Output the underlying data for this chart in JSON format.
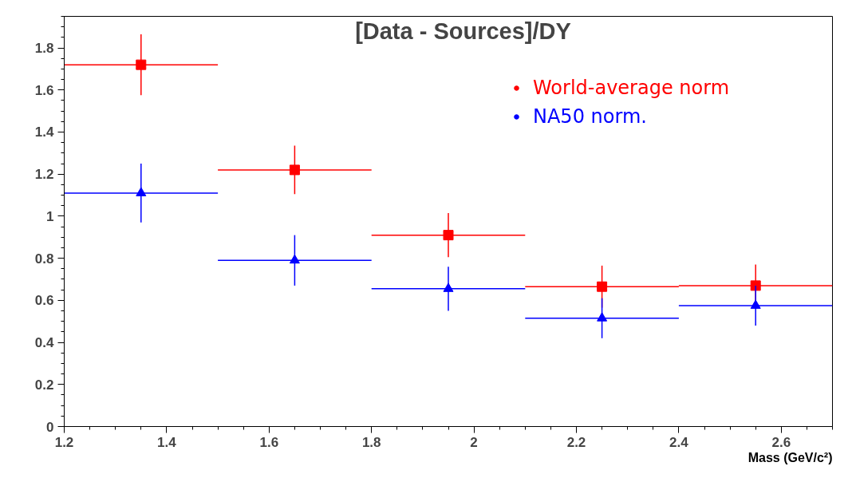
{
  "chart_data": {
    "type": "scatter",
    "title": "[Data - Sources]/DY",
    "xlabel": "Mass (GeV/c²)",
    "x": [
      1.35,
      1.65,
      1.95,
      2.25,
      2.55
    ],
    "series": [
      {
        "name": "World-average norm",
        "color": "#ff0000",
        "marker": "square",
        "values": [
          1.72,
          1.22,
          0.91,
          0.665,
          0.67
        ],
        "errors": [
          0.145,
          0.115,
          0.105,
          0.1,
          0.1
        ],
        "xerrors": [
          0.15,
          0.15,
          0.15,
          0.15,
          0.15
        ]
      },
      {
        "name": "NA50 norm.",
        "color": "#0000ff",
        "marker": "triangle",
        "values": [
          1.11,
          0.79,
          0.655,
          0.515,
          0.575
        ],
        "errors": [
          0.14,
          0.12,
          0.105,
          0.095,
          0.095
        ],
        "xerrors": [
          0.15,
          0.15,
          0.15,
          0.15,
          0.15
        ]
      }
    ],
    "xlim": [
      1.2,
      2.7
    ],
    "ylim": [
      0,
      1.95
    ],
    "xticks": [
      1.2,
      1.4,
      1.6,
      1.8,
      2,
      2.2,
      2.4,
      2.6
    ],
    "yticks": [
      0,
      0.2,
      0.4,
      0.6,
      0.8,
      1,
      1.2,
      1.4,
      1.6,
      1.8
    ],
    "grid": false,
    "legend": "top right"
  }
}
